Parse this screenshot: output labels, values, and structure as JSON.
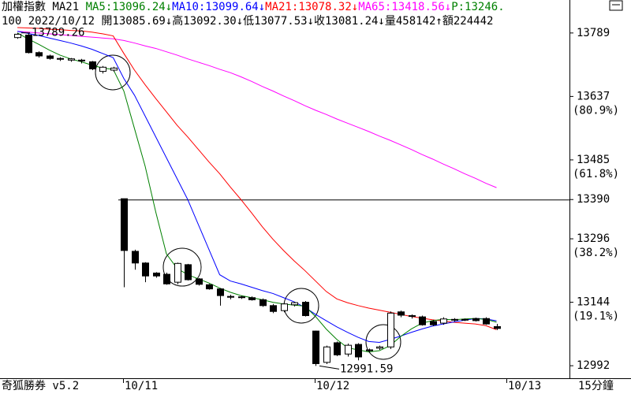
{
  "chart_data": {
    "type": "candlestick",
    "header_lines": [
      [
        {
          "text": "加權指數 MA21 ",
          "color": "#000000"
        },
        {
          "text": "MA5:13096.24↓",
          "color": "#008000"
        },
        {
          "text": "MA10:13099.64↓",
          "color": "#0000ff"
        },
        {
          "text": "MA21:13078.32↓",
          "color": "#ff0000"
        },
        {
          "text": "MA65:13418.56↓",
          "color": "#ff00ff"
        },
        {
          "text": "P:13246.",
          "color": "#008000"
        }
      ],
      [
        {
          "text": "100 2022/10/12 開13085.69↓高13092.30↓低13077.53↓收13081.24↓量458142↑額224442",
          "color": "#000000"
        }
      ]
    ],
    "categories": [
      null,
      null,
      null,
      null,
      null,
      null,
      null,
      null,
      null,
      null,
      "10/11",
      null,
      null,
      null,
      null,
      null,
      null,
      null,
      null,
      null,
      null,
      null,
      null,
      null,
      null,
      null,
      null,
      null,
      "10/12",
      null,
      null,
      null,
      null,
      null,
      null,
      null,
      null,
      null,
      null,
      null,
      null,
      null,
      null,
      null,
      null,
      null,
      "10/13"
    ],
    "open": [
      13778,
      13784,
      13742,
      13734,
      13728,
      13724,
      13722,
      13720,
      13697,
      13700,
      13392,
      13266,
      13238,
      13214,
      13211,
      13192,
      13234,
      13200,
      13186,
      13176,
      13158,
      13157,
      13155,
      13150,
      13136,
      13124,
      13138,
      13144,
      13075,
      13000,
      13047,
      13020,
      13043,
      13030,
      13034,
      13037,
      13121,
      13112,
      13109,
      13098,
      13094,
      13103,
      13102,
      13105,
      13105,
      13085.69,
      null
    ],
    "high": [
      13789.26,
      13788,
      13745,
      13737,
      13731,
      13729,
      13727,
      13722,
      13710,
      13708,
      13392,
      13270,
      13240,
      13216,
      13215,
      13239,
      13236,
      13202,
      13188,
      13178,
      13162,
      13160,
      13158,
      13153,
      13140,
      13142,
      13145,
      13147,
      13076,
      13040,
      13050,
      13045,
      13046,
      13033,
      13040,
      13122,
      13124,
      13115,
      13112,
      13102,
      13108,
      13106,
      13105,
      13107,
      13108,
      13092.3,
      null
    ],
    "low": [
      13775,
      13740,
      13730,
      13725,
      13722,
      13720,
      13716,
      13700,
      13692,
      13696,
      13180,
      13222,
      13192,
      13203,
      13186,
      13187,
      13196,
      13184,
      13174,
      13136,
      13151,
      13152,
      13148,
      13133,
      13118,
      13120,
      13134,
      13110,
      12991.59,
      12996,
      13015,
      13014,
      13005,
      13024,
      13030,
      13032,
      13108,
      13105,
      13088,
      13087,
      13090,
      13098,
      13099,
      13098,
      13090,
      13077.53,
      null
    ],
    "close": [
      13786,
      13742,
      13734,
      13728,
      13726,
      13727,
      13724,
      13703,
      13707,
      13705,
      13268,
      13238,
      13207,
      13207,
      13188,
      13237,
      13198,
      13187,
      13176,
      13160,
      13156,
      13155,
      13150,
      13136,
      13122,
      13140,
      13143,
      13112,
      12997,
      13037,
      13018,
      13041,
      13013,
      13028,
      13037,
      13118,
      13113,
      13110,
      13090,
      13090,
      13104,
      13101,
      13103,
      13100,
      13092,
      13081.24,
      null
    ],
    "up_color": "#ffffff",
    "down_color": "#000000",
    "series": [
      {
        "name": "MA65",
        "color": "#ff00ff",
        "values": [
          13793,
          13791,
          13789,
          13787,
          13785,
          13783,
          13781,
          13779,
          13777,
          13775,
          13771,
          13765,
          13758,
          13752,
          13744,
          13736,
          13727,
          13719,
          13711,
          13702,
          13694,
          13684,
          13673,
          13661,
          13650,
          13638,
          13627,
          13615,
          13604,
          13594,
          13583,
          13573,
          13563,
          13553,
          13542,
          13532,
          13521,
          13510,
          13498,
          13487,
          13475,
          13464,
          13452,
          13441,
          13429,
          13418.56,
          null
        ]
      },
      {
        "name": "MA21",
        "color": "#ff0000",
        "values": [
          13802,
          13801,
          13800,
          13798,
          13797,
          13795,
          13794,
          13791,
          13787,
          13782,
          13740,
          13700,
          13665,
          13632,
          13600,
          13568,
          13540,
          13510,
          13480,
          13452,
          13420,
          13390,
          13358,
          13325,
          13295,
          13268,
          13243,
          13220,
          13195,
          13170,
          13152,
          13143,
          13136,
          13130,
          13125,
          13120,
          13115,
          13110,
          13106,
          13102,
          13099,
          13096,
          13094,
          13092,
          13088,
          13078.32,
          null
        ]
      },
      {
        "name": "MA10",
        "color": "#0000ff",
        "values": [
          13793,
          13788,
          13783,
          13777,
          13771,
          13765,
          13758,
          13750,
          13740,
          13730,
          13680,
          13640,
          13590,
          13540,
          13490,
          13440,
          13390,
          13330,
          13270,
          13210,
          13195,
          13188,
          13180,
          13172,
          13165,
          13155,
          13145,
          13132,
          13115,
          13100,
          13085,
          13072,
          13060,
          13050,
          13048,
          13055,
          13063,
          13072,
          13080,
          13087,
          13092,
          13097,
          13101,
          13105,
          13104,
          13099.64,
          null
        ]
      },
      {
        "name": "MA5",
        "color": "#008000",
        "values": [
          13789,
          13775,
          13762,
          13748,
          13736,
          13727,
          13720,
          13712,
          13705,
          13702,
          13650,
          13560,
          13470,
          13360,
          13260,
          13225,
          13210,
          13200,
          13190,
          13178,
          13168,
          13160,
          13155,
          13150,
          13144,
          13140,
          13137,
          13135,
          13110,
          13080,
          13055,
          13035,
          13030,
          13025,
          13028,
          13040,
          13062,
          13080,
          13094,
          13100,
          13103,
          13102,
          13104,
          13105,
          13103,
          13096.24,
          null
        ]
      }
    ],
    "ylim": [
      12962,
      13868
    ],
    "yticks": [
      12992,
      13144,
      13296,
      13390,
      13485,
      13637,
      13789
    ],
    "retracements": [
      {
        "value": 13144,
        "label": "(19.1%)"
      },
      {
        "value": 13296,
        "label": "(38.2%)"
      },
      {
        "value": 13485,
        "label": "(61.8%)"
      },
      {
        "value": 13637,
        "label": "(80.9%)"
      }
    ],
    "reference_line": 13390,
    "software": "奇狐勝券 v5.2",
    "period": "15分鐘"
  }
}
